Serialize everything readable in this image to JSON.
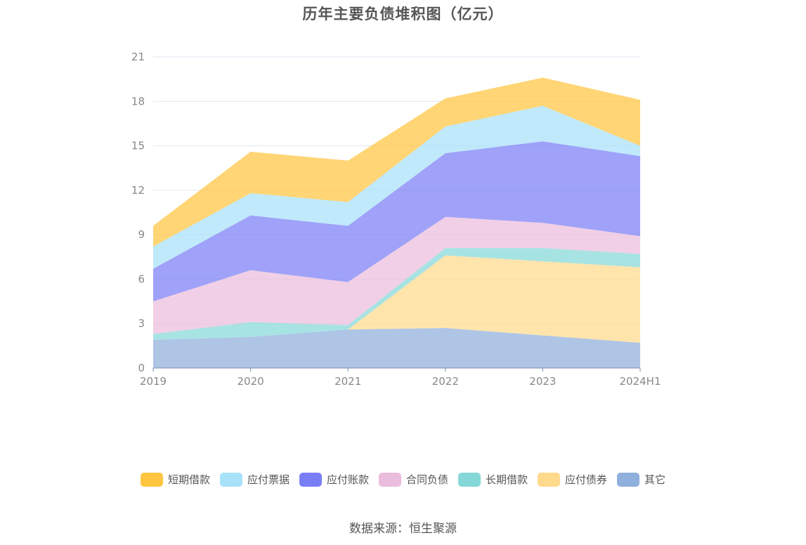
{
  "chart_data": {
    "type": "area",
    "stacked": true,
    "title": "历年主要负债堆积图（亿元）",
    "source": "数据来源：恒生聚源",
    "categories": [
      "2019",
      "2020",
      "2021",
      "2022",
      "2023",
      "2024H1"
    ],
    "ylim": [
      0,
      21
    ],
    "yticks": [
      "0",
      "3",
      "6",
      "9",
      "12",
      "15",
      "18",
      "21"
    ],
    "grid": true,
    "legend_position": "bottom",
    "series": [
      {
        "name": "其它",
        "color": "#8fafdc",
        "values": [
          1.9,
          2.1,
          2.6,
          2.7,
          2.2,
          1.7
        ]
      },
      {
        "name": "应付债券",
        "color": "#ffd98c",
        "values": [
          0.0,
          0.0,
          0.0,
          4.9,
          5.0,
          5.1
        ]
      },
      {
        "name": "长期借款",
        "color": "#86d8d8",
        "values": [
          0.4,
          1.0,
          0.3,
          0.5,
          0.9,
          0.9
        ]
      },
      {
        "name": "合同负债",
        "color": "#ebbddd",
        "values": [
          2.2,
          3.5,
          2.9,
          2.1,
          1.7,
          1.2
        ]
      },
      {
        "name": "应付账款",
        "color": "#7a7ef5",
        "values": [
          2.2,
          3.7,
          3.8,
          4.3,
          5.5,
          5.4
        ]
      },
      {
        "name": "应付票据",
        "color": "#a8e1fa",
        "values": [
          1.5,
          1.5,
          1.6,
          1.8,
          2.4,
          0.7
        ]
      },
      {
        "name": "短期借款",
        "color": "#ffc540",
        "values": [
          1.4,
          2.8,
          2.8,
          1.9,
          1.9,
          3.1
        ]
      }
    ],
    "legend_order": [
      "短期借款",
      "应付票据",
      "应付账款",
      "合同负债",
      "长期借款",
      "应付债券",
      "其它"
    ]
  }
}
